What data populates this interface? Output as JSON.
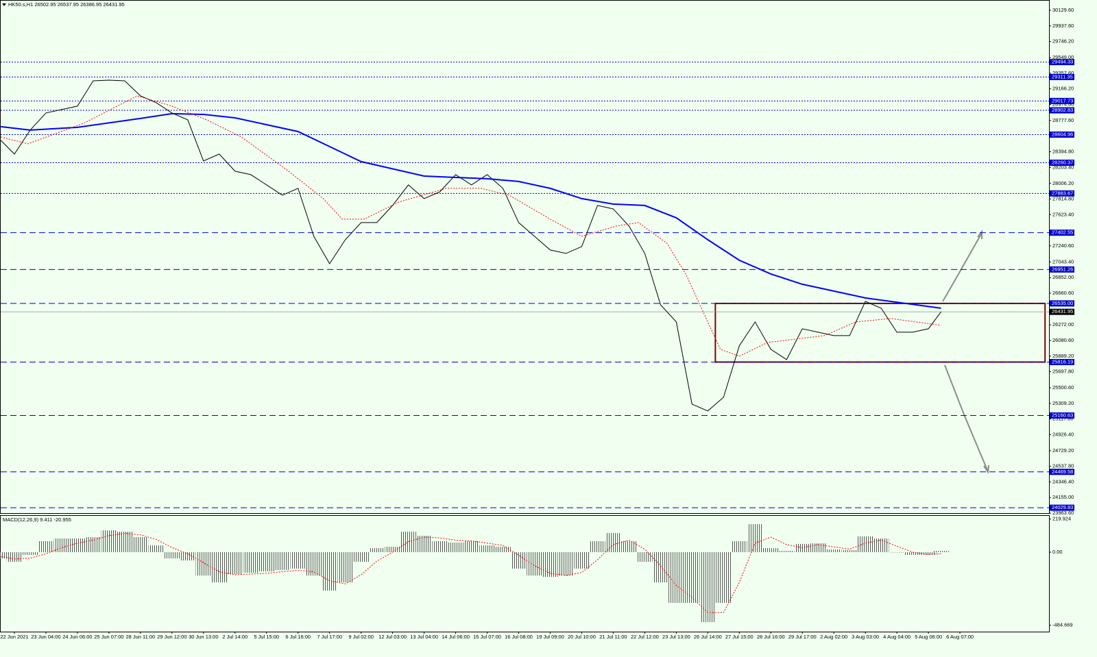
{
  "chart_data": [
    {
      "type": "line",
      "title": "HK50.s,H1  26502.95 26537.95 26386.95 26431.95",
      "xlim": [
        -0.435,
        32.826
      ],
      "ylim": [
        23963.6,
        30247.2
      ],
      "yticks": [
        {
          "value": 30129.6,
          "label": "30129.60"
        },
        {
          "value": 29937.6,
          "label": "29937.60"
        },
        {
          "value": 29746.2,
          "label": "29746.20"
        },
        {
          "value": 29549,
          "label": "29549.00"
        },
        {
          "value": 29357.6,
          "label": "29357.60"
        },
        {
          "value": 29166.2,
          "label": "29166.20"
        },
        {
          "value": 28974.8,
          "label": "28974.80"
        },
        {
          "value": 28777.6,
          "label": "28777.60"
        },
        {
          "value": 28394.8,
          "label": "28394.80"
        },
        {
          "value": 28203.4,
          "label": "28203.40"
        },
        {
          "value": 28006.2,
          "label": "28006.20"
        },
        {
          "value": 27814.8,
          "label": "27814.80"
        },
        {
          "value": 27623.4,
          "label": "27623.40"
        },
        {
          "value": 27240.6,
          "label": "27240.60"
        },
        {
          "value": 27043.4,
          "label": "27043.40"
        },
        {
          "value": 26852,
          "label": "26852.00"
        },
        {
          "value": 26660.6,
          "label": "26660.60"
        },
        {
          "value": 26272,
          "label": "26272.00"
        },
        {
          "value": 26080.6,
          "label": "26080.60"
        },
        {
          "value": 25889.2,
          "label": "25889.20"
        },
        {
          "value": 25697.8,
          "label": "25697.80"
        },
        {
          "value": 25500.6,
          "label": "25500.60"
        },
        {
          "value": 25309.2,
          "label": "25309.20"
        },
        {
          "value": 25117.8,
          "label": "25117.80"
        },
        {
          "value": 24926.4,
          "label": "24926.40"
        },
        {
          "value": 24729.2,
          "label": "24729.20"
        },
        {
          "value": 24537.8,
          "label": "24537.80"
        },
        {
          "value": 24346.4,
          "label": "24346.40"
        },
        {
          "value": 24155,
          "label": "24155.00"
        },
        {
          "value": 23963.6,
          "label": "23963.60"
        }
      ],
      "levels": [
        {
          "value": 29494.33,
          "label": "29494.33",
          "style": "dotted"
        },
        {
          "value": 29311.35,
          "label": "29311.35",
          "style": "dotted"
        },
        {
          "value": 29017.73,
          "label": "29017.73",
          "style": "dotted"
        },
        {
          "value": 28902.83,
          "label": "28902.83",
          "style": "dotted"
        },
        {
          "value": 28604.96,
          "label": "28604.96",
          "style": "dotted"
        },
        {
          "value": 28260.37,
          "label": "28260.37",
          "style": "dotted"
        },
        {
          "value": 27883.67,
          "label": "27883.67",
          "style": "dotted"
        },
        {
          "value": 27402.55,
          "label": "27402.55",
          "style": "dashed"
        },
        {
          "value": 26951.26,
          "label": "26951.26",
          "style": "dashed"
        },
        {
          "value": 26535,
          "label": "26535.00",
          "style": "dashed"
        },
        {
          "value": 25816.19,
          "label": "25816.19",
          "style": "dashed"
        },
        {
          "value": 25160.63,
          "label": "25160.63",
          "style": "dashed"
        },
        {
          "value": 24469.58,
          "label": "24469.58",
          "style": "dashed"
        },
        {
          "value": 24029.83,
          "label": "24029.83",
          "style": "dashed"
        }
      ],
      "level_color": "#0000cd",
      "current_price": 26431.95,
      "range_box": {
        "x": [
          22.24,
          32.7
        ],
        "top": 26535,
        "bottom": 25816.19,
        "color": "#800000"
      },
      "series": [
        {
          "color": "#000000",
          "line_style": "solid",
          "x": [
            -0.43,
            0,
            0.5,
            1,
            1.5,
            2,
            2.5,
            3,
            3.5,
            4,
            4.5,
            5,
            5.5,
            6,
            6.5,
            7,
            7.5,
            8,
            8.5,
            9,
            9.5,
            10,
            10.5,
            11,
            11.5,
            12,
            12.5,
            13,
            13.5,
            14,
            14.5,
            15,
            15.5,
            16,
            16.5,
            17,
            17.5,
            18,
            18.5,
            19,
            19.5,
            20,
            20.5,
            21,
            21.5,
            22,
            22.5,
            23,
            23.5,
            24,
            24.5,
            25,
            25.5,
            26,
            26.5,
            27,
            27.5,
            28,
            28.5,
            29,
            29.4
          ],
          "values": [
            28534,
            28366,
            28660,
            28870,
            28912,
            28954,
            29264,
            29273,
            29264,
            29080,
            28996,
            28870,
            28786,
            28282,
            28366,
            28156,
            28114,
            27988,
            27862,
            27946,
            27358,
            27022,
            27316,
            27526,
            27526,
            27736,
            27988,
            27820,
            27904,
            28114,
            27988,
            28114,
            27946,
            27526,
            27358,
            27190,
            27148,
            27232,
            27736,
            27694,
            27484,
            27148,
            26518,
            26308,
            25300,
            25216,
            25384,
            26014,
            26308,
            25972,
            25846,
            26224,
            26182,
            26140,
            26140,
            26560,
            26476,
            26182,
            26182,
            26224,
            26431.95
          ]
        },
        {
          "color": "#0000ff",
          "line_style": "solid",
          "x": [
            -0.43,
            0.5,
            2,
            4,
            5,
            6,
            7,
            9,
            11,
            13,
            15,
            16,
            17,
            18,
            19,
            20,
            21,
            22,
            23,
            24,
            25,
            27,
            29.4
          ],
          "values": [
            28702,
            28660,
            28694,
            28803,
            28862,
            28853,
            28811,
            28643,
            28274,
            28097,
            28064,
            28030,
            27946,
            27820,
            27753,
            27736,
            27585,
            27316,
            27064,
            26896,
            26770,
            26602,
            26476
          ]
        },
        {
          "color": "#ff0000",
          "line_style": "dotted",
          "x": [
            -0.43,
            0.43,
            2.2,
            3.9,
            5,
            6.1,
            7.2,
            8.7,
            9.8,
            10.4,
            11.1,
            12.2,
            13.7,
            14.8,
            15.7,
            17,
            18,
            19.1,
            19.8,
            20.7,
            21.3,
            22,
            22.4,
            23,
            23.9,
            25.7,
            26.7,
            27.8,
            29.4
          ],
          "values": [
            28576,
            28492,
            28744,
            29080,
            28954,
            28786,
            28576,
            28156,
            27820,
            27568,
            27568,
            27778,
            27946,
            27946,
            27862,
            27568,
            27358,
            27484,
            27526,
            27274,
            26896,
            26308,
            25972,
            25888,
            26056,
            26140,
            26308,
            26350,
            26266
          ]
        }
      ]
    },
    {
      "type": "bar",
      "title": "MACD(12,26,9) 9.411 -20.955",
      "xlim": [
        -0.435,
        32.826
      ],
      "ylim": [
        -527,
        245.5
      ],
      "yticks": [
        219.924,
        {
          "value": 0,
          "label": "0.00"
        },
        -484.669
      ],
      "xticks": [
        {
          "value": 0,
          "label": "22 Jun 2021"
        },
        {
          "value": 1,
          "label": "23 Jun 04:00"
        },
        {
          "value": 2,
          "label": "24 Jun 06:00"
        },
        {
          "value": 3,
          "label": "25 Jun 07:00"
        },
        {
          "value": 4,
          "label": "28 Jun 11:00"
        },
        {
          "value": 5,
          "label": "29 Jun 12:00"
        },
        {
          "value": 6,
          "label": "30 Jun 13:00"
        },
        {
          "value": 7,
          "label": "2 Jul 14:00"
        },
        {
          "value": 8,
          "label": "5 Jul 15:00"
        },
        {
          "value": 9,
          "label": "6 Jul 16:00"
        },
        {
          "value": 10,
          "label": "7 Jul 17:00"
        },
        {
          "value": 11,
          "label": "9 Jul 02:00"
        },
        {
          "value": 12,
          "label": "12 Jul 03:00"
        },
        {
          "value": 13,
          "label": "13 Jul 04:00"
        },
        {
          "value": 14,
          "label": "14 Jul 06:00"
        },
        {
          "value": 15,
          "label": "15 Jul 07:00"
        },
        {
          "value": 16,
          "label": "16 Jul 08:00"
        },
        {
          "value": 17,
          "label": "19 Jul 09:00"
        },
        {
          "value": 18,
          "label": "20 Jul 10:00"
        },
        {
          "value": 19,
          "label": "21 Jul 11:00"
        },
        {
          "value": 20,
          "label": "22 Jul 12:00"
        },
        {
          "value": 21,
          "label": "23 Jul 13:00"
        },
        {
          "value": 22,
          "label": "26 Jul 14:00"
        },
        {
          "value": 23,
          "label": "27 Jul 15:00"
        },
        {
          "value": 24,
          "label": "28 Jul 16:00"
        },
        {
          "value": 25,
          "label": "29 Jul 17:00"
        },
        {
          "value": 26,
          "label": "2 Aug 02:00"
        },
        {
          "value": 27,
          "label": "3 Aug 03:00"
        },
        {
          "value": 28,
          "label": "4 Aug 04:00"
        },
        {
          "value": 29,
          "label": "5 Aug 06:00"
        },
        {
          "value": 30,
          "label": "6 Aug 07:00"
        }
      ],
      "x": [
        -0.43,
        0,
        0.5,
        1,
        1.5,
        2,
        2.5,
        3,
        3.5,
        4,
        4.5,
        5,
        5.5,
        6,
        6.5,
        7,
        7.5,
        8,
        8.5,
        9,
        9.5,
        10,
        10.5,
        11,
        11.5,
        12,
        12.5,
        13,
        13.5,
        14,
        14.5,
        15,
        15.5,
        16,
        16.5,
        17,
        17.5,
        18,
        18.5,
        19,
        19.5,
        20,
        20.5,
        21,
        21.5,
        22,
        22.5,
        23,
        23.5,
        24,
        24.5,
        25,
        25.5,
        26,
        26.5,
        27,
        27.5,
        28,
        28.5,
        29,
        29.4
      ],
      "values": [
        -41,
        -64,
        -18,
        73,
        91,
        91,
        100,
        145,
        136,
        100,
        45,
        -41,
        -55,
        -155,
        -200,
        -145,
        -136,
        -127,
        -118,
        -109,
        -155,
        -255,
        -200,
        -64,
        27,
        36,
        136,
        109,
        73,
        64,
        73,
        45,
        36,
        -109,
        -155,
        -164,
        -155,
        -109,
        73,
        127,
        73,
        -64,
        -200,
        -336,
        -336,
        -464,
        -336,
        73,
        186,
        27,
        9,
        55,
        59,
        18,
        14,
        105,
        91,
        0,
        -18,
        -18,
        9
      ],
      "signal": [
        -30,
        -45,
        -40,
        -10,
        30,
        60,
        80,
        110,
        125,
        115,
        85,
        30,
        -10,
        -70,
        -130,
        -150,
        -145,
        -140,
        -130,
        -120,
        -130,
        -190,
        -210,
        -150,
        -60,
        0,
        70,
        100,
        95,
        80,
        75,
        60,
        45,
        -20,
        -90,
        -140,
        -155,
        -135,
        -50,
        50,
        80,
        20,
        -90,
        -220,
        -300,
        -400,
        -400,
        -200,
        60,
        100,
        50,
        30,
        50,
        35,
        20,
        60,
        80,
        40,
        0,
        -15,
        -10
      ],
      "signal_color": "#ff0000"
    }
  ]
}
